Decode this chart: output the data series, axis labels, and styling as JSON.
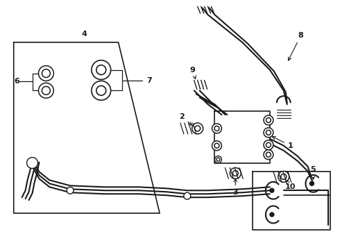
{
  "bg_color": "#ffffff",
  "line_color": "#1a1a1a",
  "lw": 1.2,
  "lw_thick": 2.2,
  "lw_pipe": 1.5
}
